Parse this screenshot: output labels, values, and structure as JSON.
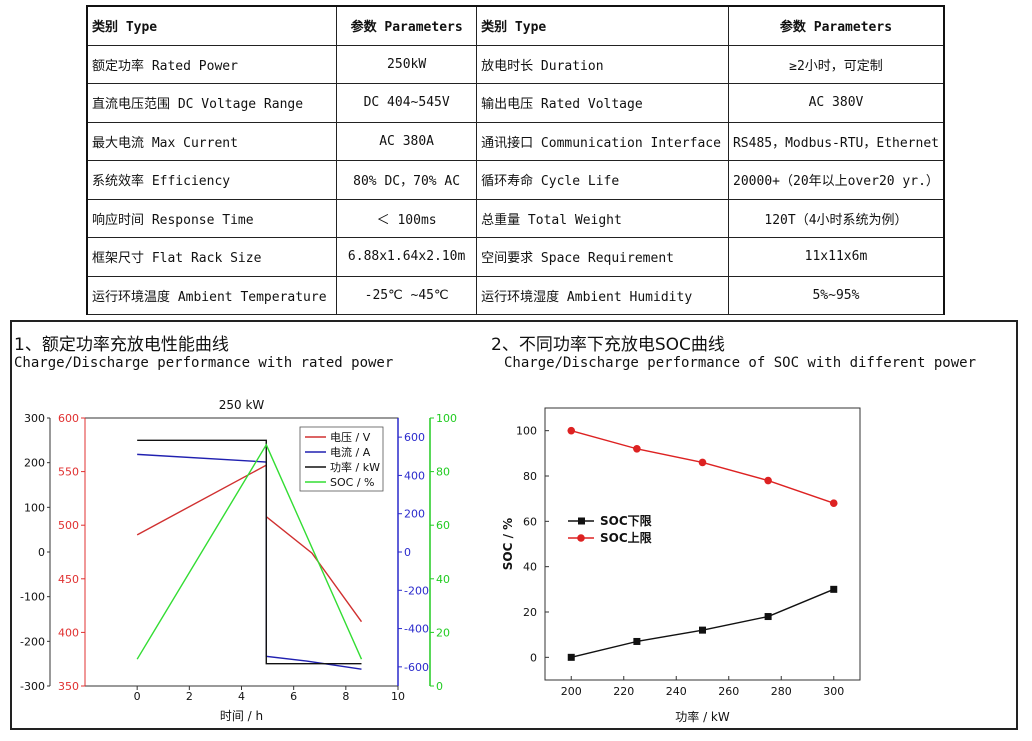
{
  "spec_table": {
    "header": [
      "类别 Type",
      "参数 Parameters",
      "类别  Type",
      "参数 Parameters"
    ],
    "rows": [
      [
        "额定功率 Rated Power",
        "250kW",
        "放电时长 Duration",
        "≥2小时，可定制"
      ],
      [
        "直流电压范围 DC Voltage Range",
        "DC 404~545V",
        "输出电压 Rated Voltage",
        "AC 380V"
      ],
      [
        "最大电流 Max Current",
        "AC 380A",
        "通讯接口 Communication Interface",
        "RS485，Modbus-RTU，Ethernet"
      ],
      [
        "系统效率 Efficiency",
        "80% DC，70% AC",
        "循环寿命 Cycle Life",
        "20000+（20年以上over20 yr.）"
      ],
      [
        "响应时间 Response Time",
        "＜ 100ms",
        "总重量 Total Weight",
        "120T（4小时系统为例）"
      ],
      [
        "框架尺寸 Flat Rack Size",
        "6.88x1.64x2.10m",
        "空间要求 Space Requirement",
        "11x11x6m"
      ],
      [
        "运行环境温度 Ambient Temperature",
        "-25℃ ~45℃",
        "运行环境湿度 Ambient Humidity",
        "5%~95%"
      ]
    ]
  },
  "section1": {
    "title": "1、额定功率充放电性能曲线",
    "subtitle": "Charge/Discharge performance with rated power"
  },
  "section2": {
    "title": "2、不同功率下充放电SOC曲线",
    "subtitle": "Charge/Discharge performance of SOC with different power"
  },
  "chart_data": [
    {
      "type": "line",
      "title": "250 kW",
      "xlabel": "时间 / h",
      "xlim": [
        -2,
        10
      ],
      "xticks": [
        0,
        2,
        4,
        6,
        8,
        10
      ],
      "axes": {
        "power": {
          "ylim": [
            -300,
            300
          ],
          "ticks": [
            300,
            200,
            100,
            0,
            -100,
            -200,
            -300
          ],
          "color": "#111111"
        },
        "voltage": {
          "ylim": [
            350,
            600
          ],
          "ticks": [
            600,
            550,
            500,
            450,
            400,
            350
          ],
          "color": "#e03030"
        },
        "current": {
          "ylim": [
            -700,
            700
          ],
          "ticks": [
            600,
            400,
            200,
            0,
            -200,
            -400,
            -600
          ],
          "color": "#2a2acc"
        },
        "soc": {
          "ylim": [
            0,
            100
          ],
          "ticks": [
            100,
            80,
            60,
            40,
            20,
            0
          ],
          "color": "#22cc22"
        }
      },
      "series": [
        {
          "name": "电压 / V",
          "axis": "voltage",
          "color": "#d03030",
          "x": [
            0,
            4.95,
            4.95,
            6.7,
            8.6
          ],
          "y": [
            491,
            556,
            508,
            474,
            410
          ]
        },
        {
          "name": "电流 / A",
          "axis": "current",
          "color": "#2020b0",
          "x": [
            0,
            4.95,
            4.95,
            6.5,
            8.6
          ],
          "y": [
            510,
            470,
            -545,
            -570,
            -612
          ]
        },
        {
          "name": "功率 / kW",
          "axis": "power",
          "color": "#111111",
          "x": [
            0,
            4.95,
            4.95,
            8.6
          ],
          "y": [
            250,
            250,
            -250,
            -250
          ]
        },
        {
          "name": "SOC / %",
          "axis": "soc",
          "color": "#33dd33",
          "x": [
            0,
            4.95,
            8.6
          ],
          "y": [
            10,
            90,
            10
          ]
        }
      ],
      "legend_position": "top-right"
    },
    {
      "type": "line",
      "title": "",
      "xlabel": "功率 / kW",
      "ylabel": "SOC / %",
      "xlim": [
        190,
        310
      ],
      "ylim": [
        -10,
        110
      ],
      "xticks": [
        200,
        220,
        240,
        260,
        280,
        300
      ],
      "yticks": [
        0,
        20,
        40,
        60,
        80,
        100
      ],
      "series": [
        {
          "name": "SOC下限",
          "color": "#111111",
          "marker": "square",
          "x": [
            200,
            225,
            250,
            275,
            300
          ],
          "y": [
            0,
            7,
            12,
            18,
            30
          ]
        },
        {
          "name": "SOC上限",
          "color": "#dd2222",
          "marker": "circle",
          "x": [
            200,
            225,
            250,
            275,
            300
          ],
          "y": [
            100,
            92,
            86,
            78,
            68
          ]
        }
      ],
      "legend_position": "center-left"
    }
  ]
}
